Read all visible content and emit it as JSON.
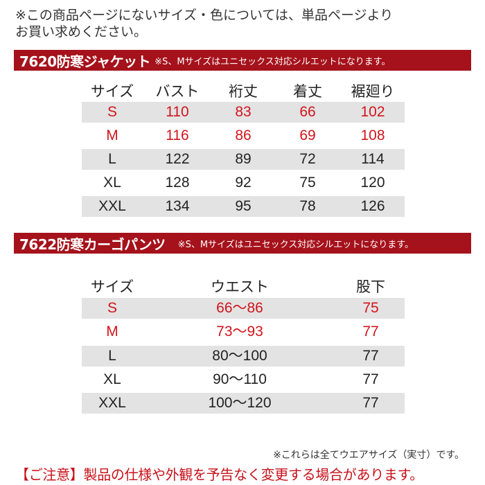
{
  "intro": {
    "line1": "※この商品ページにないサイズ・色については、単品ページより",
    "line2": "お買い求めください。"
  },
  "jacket": {
    "name": "7620防寒ジャケット",
    "note": "※S、Mサイズはユニセックス対応シルエットになります。",
    "headers": [
      "サイズ",
      "バスト",
      "裄丈",
      "着丈",
      "裾廻り"
    ],
    "rows": [
      {
        "size": "S",
        "values": [
          "110",
          "83",
          "66",
          "102"
        ],
        "highlight": true
      },
      {
        "size": "M",
        "values": [
          "116",
          "86",
          "69",
          "108"
        ],
        "highlight": true
      },
      {
        "size": "L",
        "values": [
          "122",
          "89",
          "72",
          "114"
        ],
        "highlight": false
      },
      {
        "size": "XL",
        "values": [
          "128",
          "92",
          "75",
          "120"
        ],
        "highlight": false
      },
      {
        "size": "XXL",
        "values": [
          "134",
          "95",
          "78",
          "126"
        ],
        "highlight": false
      }
    ]
  },
  "pants": {
    "name": "7622防寒カーゴパンツ",
    "note": "※S、Mサイズはユニセックス対応シルエットになります。",
    "headers": [
      "サイズ",
      "ウエスト",
      "股下"
    ],
    "rows": [
      {
        "size": "S",
        "values": [
          "66～86",
          "75"
        ],
        "highlight": true
      },
      {
        "size": "M",
        "values": [
          "73～93",
          "77"
        ],
        "highlight": true
      },
      {
        "size": "L",
        "values": [
          "80～100",
          "77"
        ],
        "highlight": false
      },
      {
        "size": "XL",
        "values": [
          "90～110",
          "77"
        ],
        "highlight": false
      },
      {
        "size": "XXL",
        "values": [
          "100～120",
          "77"
        ],
        "highlight": false
      }
    ]
  },
  "footnote": "※これらは全てウエアサイズ（実寸）です。",
  "caution": "【ご注意】製品の仕様や外観を予告なく変更する場合があります。",
  "colors": {
    "band": "#a5121b",
    "highlight_text": "#d2141c",
    "row_shade": "#e3e3e3"
  }
}
